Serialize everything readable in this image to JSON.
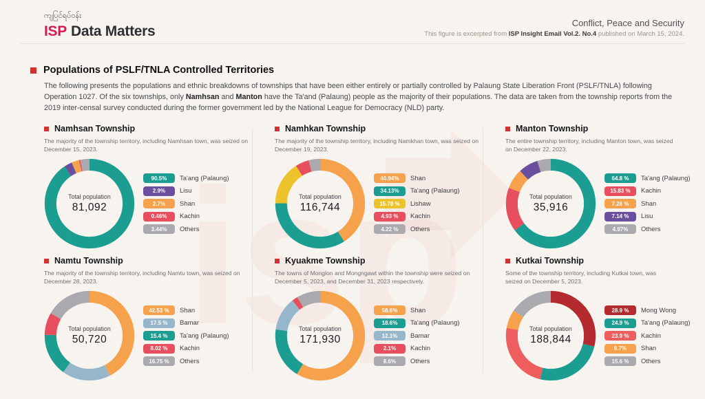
{
  "header": {
    "myanmar_title": "ကျပြင်ရပ်ဝန်း",
    "brand_isp": "ISP",
    "brand_rest": "Data Matters",
    "category": "Conflict, Peace and Security",
    "source_prefix": "This figure is excerpted from ",
    "source_bold": "ISP Insight Email Vol.2. No.4",
    "source_suffix": " published on March 15, 2024."
  },
  "section": {
    "title": "Populations of PSLF/TNLA Controlled Territories",
    "intro_1": "The following presents the populations and ethnic breakdowns of townships that have been either entirely or partially controlled by Palaung State Liberation Front (PSLF/TNLA) following Operation 1027. Of the six townships, only ",
    "intro_bold_1": "Namhsan",
    "intro_2": " and ",
    "intro_bold_2": "Manton",
    "intro_3": " have the Ta'and (Palaung) people as the majority of their populations. The data are taken from the township reports from the 2019 inter-censal survey conducted during the former government led by the National League for Democracy (NLD) party."
  },
  "colors": {
    "brand_red": "#d81b4e",
    "bullet_red": "#d23131",
    "background": "#f7f4f0",
    "divider": "#e9dfd2"
  },
  "chart_data": [
    {
      "type": "pie",
      "name": "Namhsan Township",
      "note": "The majority of the township territory, including Namhsan town, was seized on December 15, 2023.",
      "center_label": "Total population",
      "total": "81,092",
      "segments": [
        {
          "label": "Ta'ang (Palaung)",
          "value": 90.5,
          "pct_label": "90.5%",
          "color": "#1b9e91"
        },
        {
          "label": "Lisu",
          "value": 2.9,
          "pct_label": "2.9%",
          "color": "#6a4f9e"
        },
        {
          "label": "Shan",
          "value": 2.7,
          "pct_label": "2.7%",
          "color": "#f6a14c"
        },
        {
          "label": "Kachin",
          "value": 0.46,
          "pct_label": "0.46%",
          "color": "#e84f5e"
        },
        {
          "label": "Others",
          "value": 3.44,
          "pct_label": "3.44%",
          "color": "#a9a9ae"
        }
      ]
    },
    {
      "type": "pie",
      "name": "Namhkan Township",
      "note": "The majority of the township territory, including Namkhan town, was seized on December 19, 2023.",
      "center_label": "Total population",
      "total": "116,744",
      "segments": [
        {
          "label": "Shan",
          "value": 40.94,
          "pct_label": "40.94%",
          "color": "#f6a14c"
        },
        {
          "label": "Ta'ang (Palaung)",
          "value": 34.13,
          "pct_label": "34.13%",
          "color": "#1b9e91"
        },
        {
          "label": "Lishaw",
          "value": 15.78,
          "pct_label": "15.78 %",
          "color": "#edc32b"
        },
        {
          "label": "Kachin",
          "value": 4.93,
          "pct_label": "4.93 %",
          "color": "#e84f5e"
        },
        {
          "label": "Others",
          "value": 4.22,
          "pct_label": "4.22 %",
          "color": "#a9a9ae"
        }
      ]
    },
    {
      "type": "pie",
      "name": "Manton Township",
      "note": "The entire township territory, including Manton town, was seized on December 22, 2023.",
      "center_label": "Total population",
      "total": "35,916",
      "segments": [
        {
          "label": "Ta'ang (Palaung)",
          "value": 64.8,
          "pct_label": "64.8 %",
          "color": "#1b9e91"
        },
        {
          "label": "Kachin",
          "value": 15.83,
          "pct_label": "15.83 %",
          "color": "#e84f5e"
        },
        {
          "label": "Shan",
          "value": 7.26,
          "pct_label": "7.26 %",
          "color": "#f6a14c"
        },
        {
          "label": "Lisu",
          "value": 7.14,
          "pct_label": "7.14 %",
          "color": "#6a4f9e"
        },
        {
          "label": "Others",
          "value": 4.97,
          "pct_label": "4.97%",
          "color": "#a9a9ae"
        }
      ]
    },
    {
      "type": "pie",
      "name": "Namtu Township",
      "note": "The majority of the township territory, including Namtu town, was seized on December 28, 2023.",
      "center_label": "Total population",
      "total": "50,720",
      "segments": [
        {
          "label": "Shan",
          "value": 42.53,
          "pct_label": "42.53 %",
          "color": "#f6a14c"
        },
        {
          "label": "Bamar",
          "value": 17.5,
          "pct_label": "17.5 %",
          "color": "#96b7cb"
        },
        {
          "label": "Ta'ang (Palaung)",
          "value": 15.4,
          "pct_label": "15.4 %",
          "color": "#1b9e91"
        },
        {
          "label": "Kachin",
          "value": 8.02,
          "pct_label": "8.02 %",
          "color": "#e84f5e"
        },
        {
          "label": "Others",
          "value": 16.75,
          "pct_label": "16.75 %",
          "color": "#a9a9ae"
        }
      ]
    },
    {
      "type": "pie",
      "name": "Kyuakme Township",
      "note": "The towns of Monglon and Mongngawt within the township were seized on December 5, 2023, and December 31, 2023 respectively.",
      "center_label": "Total population",
      "total": "171,930",
      "segments": [
        {
          "label": "Shan",
          "value": 58.6,
          "pct_label": "58.6%",
          "color": "#f6a14c"
        },
        {
          "label": "Ta'ang (Palaung)",
          "value": 18.6,
          "pct_label": "18.6%",
          "color": "#1b9e91"
        },
        {
          "label": "Bamar",
          "value": 12.1,
          "pct_label": "12.1%",
          "color": "#96b7cb"
        },
        {
          "label": "Kachin",
          "value": 2.1,
          "pct_label": "2.1%",
          "color": "#e84f5e"
        },
        {
          "label": "Others",
          "value": 8.6,
          "pct_label": "8.6%",
          "color": "#a9a9ae"
        }
      ]
    },
    {
      "type": "pie",
      "name": "Kutkai Township",
      "note": "Some of the township territory, including Kutkai town, was seized on December 5, 2023.",
      "center_label": "Total population",
      "total": "188,844",
      "segments": [
        {
          "label": "Mong Wong",
          "value": 28.9,
          "pct_label": "28.9 %",
          "color": "#b42a2e"
        },
        {
          "label": "Ta'ang (Palaung)",
          "value": 24.9,
          "pct_label": "24.9 %",
          "color": "#1b9e91"
        },
        {
          "label": "Kachin",
          "value": 23.9,
          "pct_label": "23.9 %",
          "color": "#ee5e5e"
        },
        {
          "label": "Shan",
          "value": 6.7,
          "pct_label": "6.7%",
          "color": "#f6a14c"
        },
        {
          "label": "Others",
          "value": 15.6,
          "pct_label": "15.6 %",
          "color": "#a9a9ae"
        }
      ]
    }
  ]
}
